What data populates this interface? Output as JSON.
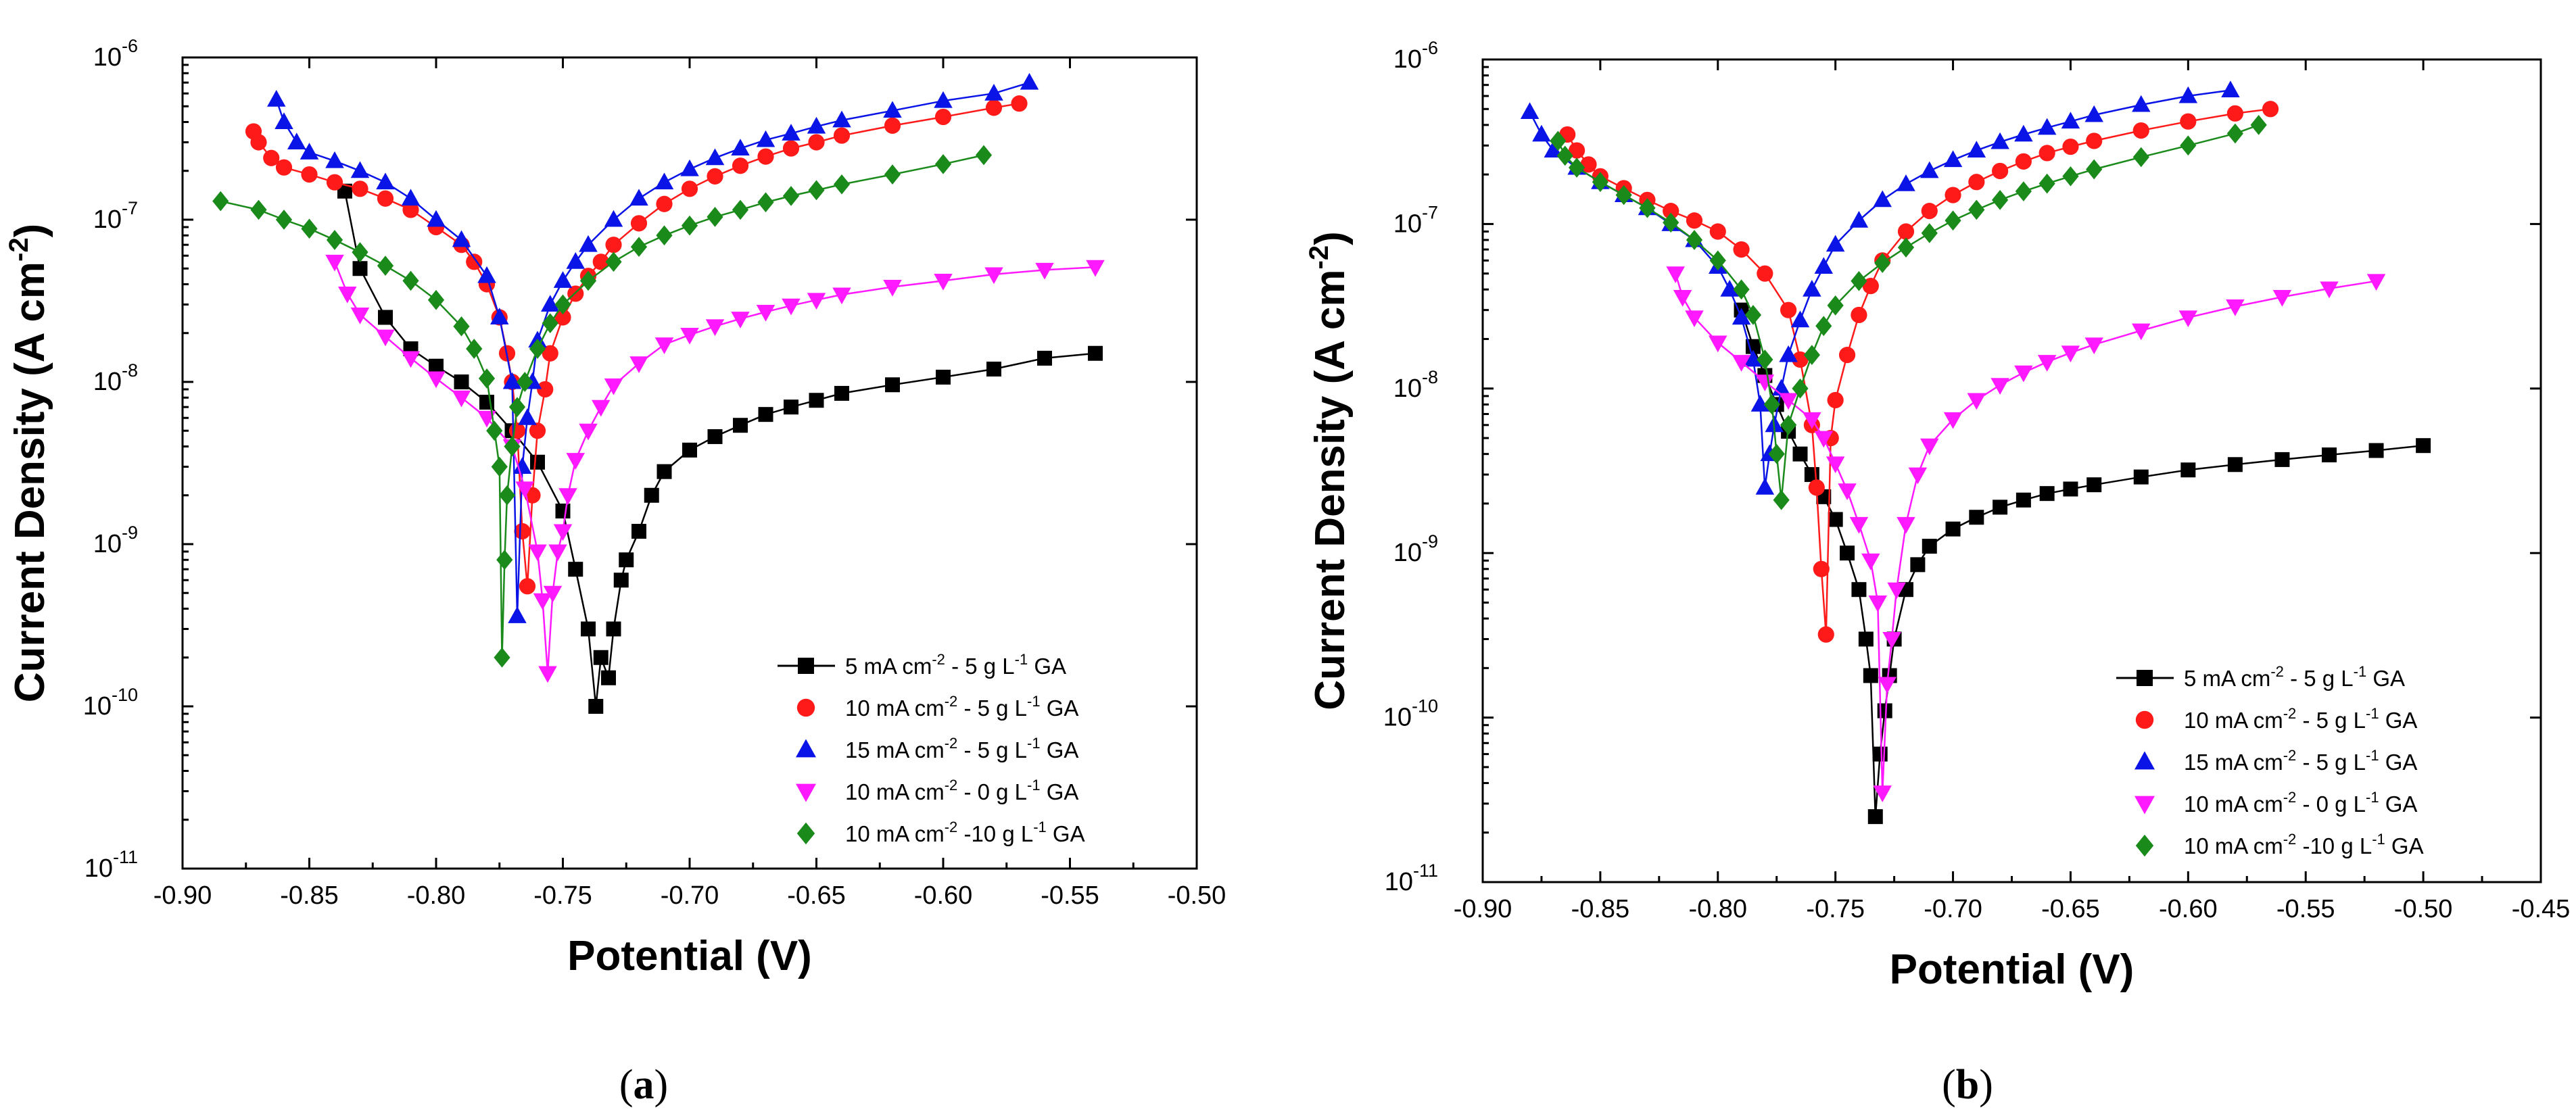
{
  "chart_data": [
    {
      "type": "line",
      "panel_label_open": "(",
      "panel_label_letter": "a",
      "panel_label_close": ")",
      "xlabel": "Potential (V)",
      "ylabel": "Current Density (A cm-2)",
      "ylabel_main": "Current Density (A cm",
      "ylabel_sup": "-2",
      "ylabel_end": ")",
      "xlim": [
        -0.9,
        -0.5
      ],
      "ylim": [
        1e-11,
        1e-06
      ],
      "yscale": "log",
      "xticks": [
        "-0.90",
        "-0.85",
        "-0.80",
        "-0.75",
        "-0.70",
        "-0.65",
        "-0.60",
        "-0.55",
        "-0.50"
      ],
      "yticks": [
        {
          "base": "10",
          "exp": "-11"
        },
        {
          "base": "10",
          "exp": "-10"
        },
        {
          "base": "10",
          "exp": "-9"
        },
        {
          "base": "10",
          "exp": "-8"
        },
        {
          "base": "10",
          "exp": "-7"
        },
        {
          "base": "10",
          "exp": "-6"
        }
      ],
      "legend_position": "bottom-right",
      "series": [
        {
          "name": "5 mA cm-2 - 5 g L-1 GA",
          "label_parts": [
            " 5 mA cm",
            "-2",
            " -  5 g L",
            "-1",
            " GA"
          ],
          "color": "#000000",
          "marker": "square",
          "x": [
            -0.836,
            -0.83,
            -0.82,
            -0.81,
            -0.8,
            -0.79,
            -0.78,
            -0.77,
            -0.76,
            -0.75,
            -0.745,
            -0.74,
            -0.737,
            -0.735,
            -0.732,
            -0.73,
            -0.727,
            -0.725,
            -0.72,
            -0.715,
            -0.71,
            -0.7,
            -0.69,
            -0.68,
            -0.67,
            -0.66,
            -0.65,
            -0.64,
            -0.62,
            -0.6,
            -0.58,
            -0.56,
            -0.54
          ],
          "y": [
            1.5e-07,
            5e-08,
            2.5e-08,
            1.6e-08,
            1.25e-08,
            1e-08,
            7.5e-09,
            5e-09,
            3.2e-09,
            1.6e-09,
            7e-10,
            3e-10,
            1e-10,
            2e-10,
            1.5e-10,
            3e-10,
            6e-10,
            8e-10,
            1.2e-09,
            2e-09,
            2.8e-09,
            3.8e-09,
            4.6e-09,
            5.4e-09,
            6.3e-09,
            7e-09,
            7.7e-09,
            8.5e-09,
            9.6e-09,
            1.07e-08,
            1.2e-08,
            1.4e-08,
            1.5e-08
          ]
        },
        {
          "name": "10 mA cm-2 - 5 g L-1 GA",
          "label_parts": [
            "10 mA cm",
            "-2",
            " -  5 g L",
            "-1",
            " GA"
          ],
          "color": "#ff1a1a",
          "marker": "circle",
          "x": [
            -0.872,
            -0.87,
            -0.865,
            -0.86,
            -0.85,
            -0.84,
            -0.83,
            -0.82,
            -0.81,
            -0.8,
            -0.79,
            -0.785,
            -0.78,
            -0.775,
            -0.772,
            -0.77,
            -0.768,
            -0.766,
            -0.764,
            -0.762,
            -0.76,
            -0.757,
            -0.755,
            -0.75,
            -0.745,
            -0.74,
            -0.735,
            -0.73,
            -0.72,
            -0.71,
            -0.7,
            -0.69,
            -0.68,
            -0.67,
            -0.66,
            -0.65,
            -0.64,
            -0.62,
            -0.6,
            -0.58,
            -0.57
          ],
          "y": [
            3.5e-07,
            3e-07,
            2.4e-07,
            2.1e-07,
            1.9e-07,
            1.7e-07,
            1.55e-07,
            1.35e-07,
            1.15e-07,
            9e-08,
            7e-08,
            5.5e-08,
            4e-08,
            2.5e-08,
            1.5e-08,
            1e-08,
            5e-09,
            1.2e-09,
            5.5e-10,
            2e-09,
            5e-09,
            9e-09,
            1.5e-08,
            2.5e-08,
            3.5e-08,
            4.5e-08,
            5.5e-08,
            7e-08,
            9.5e-08,
            1.25e-07,
            1.55e-07,
            1.85e-07,
            2.15e-07,
            2.45e-07,
            2.75e-07,
            3e-07,
            3.3e-07,
            3.8e-07,
            4.3e-07,
            4.9e-07,
            5.2e-07
          ]
        },
        {
          "name": "15 mA cm-2 - 5 g L-1 GA",
          "label_parts": [
            "15 mA cm",
            "-2",
            " -  5 g L",
            "-1",
            " GA"
          ],
          "color": "#0a14e6",
          "marker": "triangle-up",
          "x": [
            -0.863,
            -0.86,
            -0.855,
            -0.85,
            -0.84,
            -0.83,
            -0.82,
            -0.81,
            -0.8,
            -0.79,
            -0.78,
            -0.775,
            -0.77,
            -0.768,
            -0.766,
            -0.764,
            -0.762,
            -0.76,
            -0.755,
            -0.75,
            -0.745,
            -0.74,
            -0.73,
            -0.72,
            -0.71,
            -0.7,
            -0.69,
            -0.68,
            -0.67,
            -0.66,
            -0.65,
            -0.64,
            -0.62,
            -0.6,
            -0.58,
            -0.566
          ],
          "y": [
            5.5e-07,
            4e-07,
            3e-07,
            2.6e-07,
            2.3e-07,
            2e-07,
            1.7e-07,
            1.35e-07,
            1e-07,
            7.5e-08,
            4.5e-08,
            2.5e-08,
            1e-08,
            3.6e-10,
            3e-09,
            6e-09,
            1e-08,
            1.8e-08,
            3e-08,
            4.2e-08,
            5.5e-08,
            7e-08,
            1e-07,
            1.35e-07,
            1.7e-07,
            2.05e-07,
            2.4e-07,
            2.75e-07,
            3.1e-07,
            3.4e-07,
            3.75e-07,
            4.1e-07,
            4.7e-07,
            5.4e-07,
            6e-07,
            7e-07
          ]
        },
        {
          "name": "10 mA cm-2 - 0 g L-1 GA",
          "label_parts": [
            "10 mA cm",
            "-2",
            " -  0 g L",
            "-1",
            " GA"
          ],
          "color": "#ff19ff",
          "marker": "triangle-down",
          "x": [
            -0.84,
            -0.835,
            -0.83,
            -0.82,
            -0.81,
            -0.8,
            -0.79,
            -0.78,
            -0.77,
            -0.765,
            -0.76,
            -0.758,
            -0.756,
            -0.754,
            -0.752,
            -0.75,
            -0.748,
            -0.745,
            -0.74,
            -0.735,
            -0.73,
            -0.72,
            -0.71,
            -0.7,
            -0.69,
            -0.68,
            -0.67,
            -0.66,
            -0.65,
            -0.64,
            -0.62,
            -0.6,
            -0.58,
            -0.56,
            -0.54
          ],
          "y": [
            5.5e-08,
            3.5e-08,
            2.6e-08,
            1.9e-08,
            1.4e-08,
            1.05e-08,
            8e-09,
            6e-09,
            4e-09,
            2.2e-09,
            9e-10,
            4.5e-10,
            1.6e-10,
            5e-10,
            9e-10,
            1.2e-09,
            2e-09,
            3.3e-09,
            5e-09,
            7e-09,
            9.5e-09,
            1.3e-08,
            1.7e-08,
            1.95e-08,
            2.2e-08,
            2.45e-08,
            2.7e-08,
            2.95e-08,
            3.2e-08,
            3.45e-08,
            3.85e-08,
            4.2e-08,
            4.6e-08,
            4.9e-08,
            5.1e-08
          ]
        },
        {
          "name": "10 mA cm-2 -10 g L-1 GA",
          "label_parts": [
            "10 mA cm",
            "-2",
            " -10 g L",
            "-1",
            " GA"
          ],
          "color": "#1a8a1a",
          "marker": "diamond",
          "x": [
            -0.885,
            -0.87,
            -0.86,
            -0.85,
            -0.84,
            -0.83,
            -0.82,
            -0.81,
            -0.8,
            -0.79,
            -0.785,
            -0.78,
            -0.777,
            -0.775,
            -0.774,
            -0.773,
            -0.772,
            -0.77,
            -0.768,
            -0.765,
            -0.76,
            -0.755,
            -0.75,
            -0.74,
            -0.73,
            -0.72,
            -0.71,
            -0.7,
            -0.69,
            -0.68,
            -0.67,
            -0.66,
            -0.65,
            -0.64,
            -0.62,
            -0.6,
            -0.584
          ],
          "y": [
            1.3e-07,
            1.15e-07,
            1e-07,
            8.8e-08,
            7.5e-08,
            6.3e-08,
            5.2e-08,
            4.2e-08,
            3.2e-08,
            2.2e-08,
            1.6e-08,
            1.05e-08,
            5e-09,
            3e-09,
            2e-10,
            8e-10,
            2e-09,
            4e-09,
            7e-09,
            1e-08,
            1.6e-08,
            2.3e-08,
            3e-08,
            4.2e-08,
            5.5e-08,
            6.8e-08,
            8e-08,
            9.2e-08,
            1.04e-07,
            1.15e-07,
            1.28e-07,
            1.4e-07,
            1.52e-07,
            1.65e-07,
            1.9e-07,
            2.2e-07,
            2.5e-07
          ]
        }
      ]
    },
    {
      "type": "line",
      "panel_label_open": "(",
      "panel_label_letter": "b",
      "panel_label_close": ")",
      "xlabel": "Potential (V)",
      "ylabel": "Current Density (A cm-2)",
      "ylabel_main": "Current Density (A cm",
      "ylabel_sup": "-2",
      "ylabel_end": ")",
      "xlim": [
        -0.9,
        -0.45
      ],
      "ylim": [
        1e-11,
        1e-06
      ],
      "yscale": "log",
      "xticks": [
        "-0.90",
        "-0.85",
        "-0.80",
        "-0.75",
        "-0.70",
        "-0.65",
        "-0.60",
        "-0.55",
        "-0.50",
        "-0.45"
      ],
      "yticks": [
        {
          "base": "10",
          "exp": "-11"
        },
        {
          "base": "10",
          "exp": "-10"
        },
        {
          "base": "10",
          "exp": "-9"
        },
        {
          "base": "10",
          "exp": "-8"
        },
        {
          "base": "10",
          "exp": "-7"
        },
        {
          "base": "10",
          "exp": "-6"
        }
      ],
      "legend_position": "bottom-right",
      "series": [
        {
          "name": "5 mA cm-2 - 5 g L-1 GA",
          "label_parts": [
            " 5 mA cm",
            "-2",
            " -  5 g L",
            "-1",
            " GA"
          ],
          "color": "#000000",
          "marker": "square",
          "x": [
            -0.79,
            -0.785,
            -0.78,
            -0.775,
            -0.77,
            -0.765,
            -0.76,
            -0.755,
            -0.75,
            -0.745,
            -0.74,
            -0.737,
            -0.735,
            -0.733,
            -0.731,
            -0.729,
            -0.727,
            -0.725,
            -0.72,
            -0.715,
            -0.71,
            -0.7,
            -0.69,
            -0.68,
            -0.67,
            -0.66,
            -0.65,
            -0.64,
            -0.62,
            -0.6,
            -0.58,
            -0.56,
            -0.54,
            -0.52,
            -0.5
          ],
          "y": [
            3e-08,
            1.8e-08,
            1.2e-08,
            8e-09,
            5.5e-09,
            4e-09,
            3e-09,
            2.2e-09,
            1.6e-09,
            1e-09,
            6e-10,
            3e-10,
            1.8e-10,
            2.5e-11,
            6e-11,
            1.1e-10,
            1.8e-10,
            3e-10,
            6e-10,
            8.5e-10,
            1.1e-09,
            1.4e-09,
            1.65e-09,
            1.9e-09,
            2.1e-09,
            2.3e-09,
            2.45e-09,
            2.6e-09,
            2.9e-09,
            3.2e-09,
            3.45e-09,
            3.7e-09,
            3.95e-09,
            4.2e-09,
            4.5e-09
          ]
        },
        {
          "name": "10 mA cm-2 - 5 g L-1 GA",
          "label_parts": [
            "10 mA cm",
            "-2",
            " -  5 g L",
            "-1",
            " GA"
          ],
          "color": "#ff1a1a",
          "marker": "circle",
          "x": [
            -0.864,
            -0.86,
            -0.855,
            -0.85,
            -0.84,
            -0.83,
            -0.82,
            -0.81,
            -0.8,
            -0.79,
            -0.78,
            -0.77,
            -0.765,
            -0.76,
            -0.758,
            -0.756,
            -0.754,
            -0.752,
            -0.75,
            -0.745,
            -0.74,
            -0.735,
            -0.73,
            -0.72,
            -0.71,
            -0.7,
            -0.69,
            -0.68,
            -0.67,
            -0.66,
            -0.65,
            -0.64,
            -0.62,
            -0.6,
            -0.58,
            -0.565
          ],
          "y": [
            3.5e-07,
            2.8e-07,
            2.3e-07,
            1.95e-07,
            1.65e-07,
            1.4e-07,
            1.2e-07,
            1.05e-07,
            9e-08,
            7e-08,
            5e-08,
            3e-08,
            1.5e-08,
            6e-09,
            2.5e-09,
            8e-10,
            3.2e-10,
            5e-09,
            8.5e-09,
            1.6e-08,
            2.8e-08,
            4.2e-08,
            6e-08,
            9e-08,
            1.2e-07,
            1.5e-07,
            1.8e-07,
            2.1e-07,
            2.4e-07,
            2.7e-07,
            2.95e-07,
            3.2e-07,
            3.7e-07,
            4.2e-07,
            4.7e-07,
            5e-07
          ]
        },
        {
          "name": "15 mA cm-2 - 5 g L-1 GA",
          "label_parts": [
            "15 mA cm",
            "-2",
            " -  5 g L",
            "-1",
            " GA"
          ],
          "color": "#0a14e6",
          "marker": "triangle-up",
          "x": [
            -0.88,
            -0.875,
            -0.87,
            -0.86,
            -0.85,
            -0.84,
            -0.83,
            -0.82,
            -0.81,
            -0.8,
            -0.795,
            -0.79,
            -0.785,
            -0.782,
            -0.78,
            -0.778,
            -0.776,
            -0.773,
            -0.77,
            -0.765,
            -0.76,
            -0.755,
            -0.75,
            -0.74,
            -0.73,
            -0.72,
            -0.71,
            -0.7,
            -0.69,
            -0.68,
            -0.67,
            -0.66,
            -0.65,
            -0.64,
            -0.62,
            -0.6,
            -0.582
          ],
          "y": [
            4.8e-07,
            3.5e-07,
            2.8e-07,
            2.2e-07,
            1.8e-07,
            1.5e-07,
            1.25e-07,
            1e-07,
            8e-08,
            5.5e-08,
            4e-08,
            2.7e-08,
            1.5e-08,
            8e-09,
            2.5e-09,
            4e-09,
            6e-09,
            1e-08,
            1.6e-08,
            2.6e-08,
            4e-08,
            5.5e-08,
            7.5e-08,
            1.05e-07,
            1.4e-07,
            1.75e-07,
            2.1e-07,
            2.45e-07,
            2.8e-07,
            3.15e-07,
            3.5e-07,
            3.85e-07,
            4.2e-07,
            4.6e-07,
            5.3e-07,
            6e-07,
            6.5e-07
          ]
        },
        {
          "name": "10 mA cm-2 - 0 g L-1 GA",
          "label_parts": [
            "10 mA cm",
            "-2",
            " -  0 g L",
            "-1",
            " GA"
          ],
          "color": "#ff19ff",
          "marker": "triangle-down",
          "x": [
            -0.818,
            -0.815,
            -0.81,
            -0.8,
            -0.79,
            -0.78,
            -0.77,
            -0.76,
            -0.755,
            -0.75,
            -0.745,
            -0.74,
            -0.735,
            -0.732,
            -0.73,
            -0.728,
            -0.726,
            -0.724,
            -0.72,
            -0.715,
            -0.71,
            -0.7,
            -0.69,
            -0.68,
            -0.67,
            -0.66,
            -0.65,
            -0.64,
            -0.62,
            -0.6,
            -0.58,
            -0.56,
            -0.54,
            -0.52
          ],
          "y": [
            5e-08,
            3.6e-08,
            2.7e-08,
            1.9e-08,
            1.45e-08,
            1.1e-08,
            8.5e-09,
            6.5e-09,
            5e-09,
            3.5e-09,
            2.4e-09,
            1.5e-09,
            9e-10,
            5e-10,
            3.5e-11,
            1.6e-10,
            3e-10,
            6e-10,
            1.5e-09,
            3e-09,
            4.5e-09,
            6.5e-09,
            8.5e-09,
            1.05e-08,
            1.25e-08,
            1.45e-08,
            1.65e-08,
            1.85e-08,
            2.25e-08,
            2.7e-08,
            3.15e-08,
            3.6e-08,
            4.05e-08,
            4.5e-08
          ]
        },
        {
          "name": "10 mA cm-2 -10 g L-1 GA",
          "label_parts": [
            "10 mA cm",
            "-2",
            " -10 g L",
            "-1",
            " GA"
          ],
          "color": "#1a8a1a",
          "marker": "diamond",
          "x": [
            -0.868,
            -0.865,
            -0.86,
            -0.85,
            -0.84,
            -0.83,
            -0.82,
            -0.81,
            -0.8,
            -0.79,
            -0.785,
            -0.78,
            -0.777,
            -0.775,
            -0.773,
            -0.77,
            -0.765,
            -0.76,
            -0.755,
            -0.75,
            -0.74,
            -0.73,
            -0.72,
            -0.71,
            -0.7,
            -0.69,
            -0.68,
            -0.67,
            -0.66,
            -0.65,
            -0.64,
            -0.62,
            -0.6,
            -0.58,
            -0.57
          ],
          "y": [
            3.2e-07,
            2.6e-07,
            2.2e-07,
            1.8e-07,
            1.5e-07,
            1.25e-07,
            1.02e-07,
            8e-08,
            6e-08,
            4e-08,
            2.8e-08,
            1.5e-08,
            8e-09,
            4e-09,
            2.1e-09,
            6e-09,
            1e-08,
            1.6e-08,
            2.4e-08,
            3.2e-08,
            4.5e-08,
            5.8e-08,
            7.2e-08,
            8.8e-08,
            1.05e-07,
            1.22e-07,
            1.4e-07,
            1.58e-07,
            1.76e-07,
            1.95e-07,
            2.15e-07,
            2.55e-07,
            3e-07,
            3.55e-07,
            4e-07
          ]
        }
      ]
    }
  ]
}
